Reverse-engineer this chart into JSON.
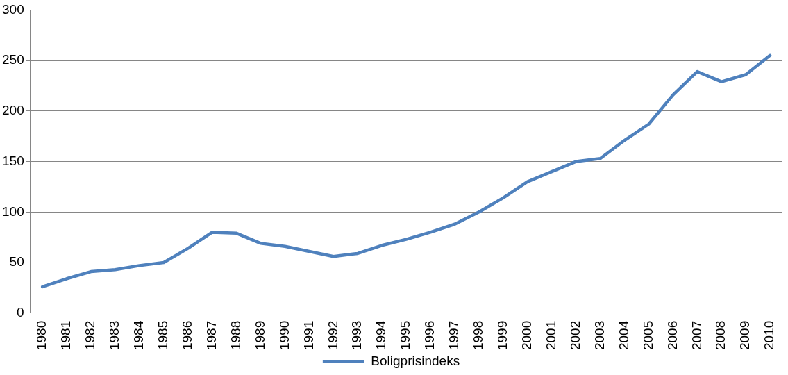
{
  "chart_data": {
    "type": "line",
    "categories": [
      "1980",
      "1981",
      "1982",
      "1983",
      "1984",
      "1985",
      "1986",
      "1987",
      "1988",
      "1989",
      "1990",
      "1991",
      "1992",
      "1993",
      "1994",
      "1995",
      "1996",
      "1997",
      "1998",
      "1999",
      "2000",
      "2001",
      "2002",
      "2003",
      "2004",
      "2005",
      "2006",
      "2007",
      "2008",
      "2009",
      "2010"
    ],
    "series": [
      {
        "name": "Boligprisindeks",
        "color": "#4f81bd",
        "values": [
          26,
          34,
          41,
          43,
          47,
          50,
          64,
          80,
          79,
          69,
          66,
          61,
          56,
          59,
          67,
          73,
          80,
          88,
          100,
          114,
          130,
          140,
          150,
          153,
          171,
          187,
          216,
          239,
          229,
          236,
          255
        ]
      }
    ],
    "ylim": [
      0,
      300
    ],
    "yticks": [
      0,
      50,
      100,
      150,
      200,
      250,
      300
    ],
    "grid": "y",
    "legend": "bottom",
    "marker": "none",
    "line_style": "solid"
  }
}
